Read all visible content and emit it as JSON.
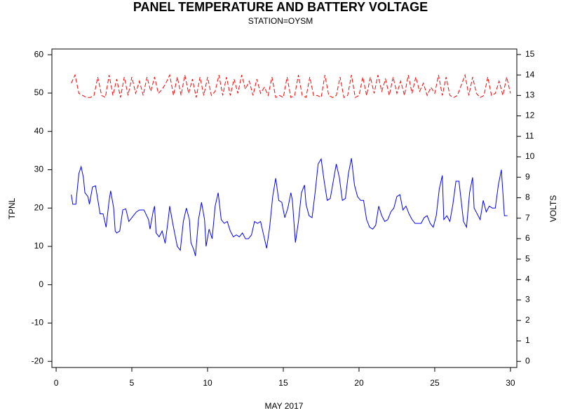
{
  "chart_data": {
    "type": "line",
    "title": "PANEL TEMPERATURE AND BATTERY VOLTAGE",
    "subtitle": "STATION=OYSM",
    "x_label": "MAY 2017",
    "y_label": "TPNL",
    "y2_label": "VOLTS",
    "xlim": [
      -0.28,
      30.42
    ],
    "xticks": [
      0,
      5,
      10,
      15,
      20,
      25,
      30
    ],
    "ylim": [
      -21.6,
      61.5
    ],
    "yticks": [
      -20,
      -10,
      0,
      10,
      20,
      30,
      40,
      50,
      60
    ],
    "y2lim": [
      -0.3,
      15.27
    ],
    "y2ticks": [
      0,
      1,
      2,
      3,
      4,
      5,
      6,
      7,
      8,
      9,
      10,
      11,
      12,
      13,
      14,
      15
    ],
    "series": [
      {
        "name": "TPNL",
        "color": "#0000ff",
        "dashed": false,
        "x": [
          1.0,
          1.1,
          1.3,
          1.5,
          1.65,
          1.8,
          1.9,
          2.1,
          2.2,
          2.4,
          2.6,
          2.8,
          2.9,
          3.1,
          3.3,
          3.5,
          3.6,
          3.8,
          3.9,
          4.0,
          4.2,
          4.4,
          4.6,
          4.8,
          5.0,
          5.3,
          5.5,
          5.8,
          6.1,
          6.2,
          6.4,
          6.5,
          6.6,
          6.8,
          7.0,
          7.2,
          7.4,
          7.5,
          7.7,
          7.9,
          8.0,
          8.2,
          8.4,
          8.6,
          8.8,
          8.9,
          9.1,
          9.2,
          9.4,
          9.6,
          9.8,
          9.9,
          10.1,
          10.3,
          10.5,
          10.7,
          10.9,
          11.1,
          11.3,
          11.5,
          11.7,
          11.9,
          12.1,
          12.3,
          12.5,
          12.7,
          12.9,
          13.1,
          13.3,
          13.5,
          13.7,
          13.9,
          14.1,
          14.3,
          14.5,
          14.7,
          14.9,
          15.1,
          15.3,
          15.5,
          15.6,
          15.8,
          16.0,
          16.2,
          16.4,
          16.5,
          16.7,
          16.9,
          17.1,
          17.3,
          17.5,
          17.7,
          17.9,
          18.1,
          18.3,
          18.5,
          18.7,
          18.9,
          19.1,
          19.3,
          19.5,
          19.7,
          19.9,
          20.1,
          20.3,
          20.5,
          20.7,
          20.9,
          21.1,
          21.3,
          21.5,
          21.7,
          21.9,
          22.1,
          22.3,
          22.5,
          22.7,
          22.9,
          23.1,
          23.3,
          23.5,
          23.7,
          23.9,
          24.1,
          24.3,
          24.5,
          24.7,
          24.9,
          25.1,
          25.3,
          25.5,
          25.6,
          25.8,
          26.0,
          26.2,
          26.4,
          26.6,
          26.8,
          26.9,
          27.1,
          27.3,
          27.5,
          27.6,
          27.8,
          28.0,
          28.2,
          28.4,
          28.6,
          28.8,
          29.0,
          29.2,
          29.4,
          29.6,
          29.8
        ],
        "values": [
          23.5,
          21,
          21,
          29,
          30.8,
          28,
          24,
          23,
          21,
          25.5,
          25.8,
          21,
          18.5,
          18.5,
          15,
          22,
          24.5,
          20,
          14,
          13.5,
          14,
          19.5,
          19.8,
          16.5,
          17.5,
          19,
          19.5,
          19.5,
          17,
          14.5,
          19,
          20.5,
          13.5,
          12.5,
          14,
          10.8,
          17,
          20.5,
          16,
          12,
          10,
          9,
          16.5,
          20,
          17,
          11,
          9,
          7.5,
          17,
          21.5,
          17,
          10,
          14.5,
          12,
          20.5,
          24,
          17,
          16,
          16.5,
          14,
          12.5,
          13,
          12.5,
          13.5,
          12,
          12,
          13,
          16.5,
          16,
          16.5,
          13,
          9.5,
          15,
          23,
          27.8,
          22,
          21.5,
          17.5,
          20,
          24,
          22,
          11,
          16.5,
          24,
          26,
          21,
          18,
          17.5,
          24,
          31.5,
          32.8,
          27,
          22,
          22.5,
          27,
          31.5,
          28,
          22,
          22.5,
          29,
          33,
          26,
          23,
          22,
          22,
          17,
          15,
          14.5,
          15.5,
          20.5,
          18,
          16.5,
          17,
          19,
          20,
          23,
          23.5,
          19.5,
          20.5,
          18.5,
          17,
          16,
          16,
          16,
          17.5,
          18,
          16,
          15,
          18,
          25,
          28.5,
          17,
          18,
          16.5,
          21,
          27,
          27,
          20,
          16.5,
          15,
          24,
          28,
          20,
          18.5,
          17,
          22,
          19,
          20.5,
          20,
          20,
          26,
          30,
          18,
          18
        ]
      },
      {
        "name": "VOLTS",
        "color": "#ff0000",
        "dashed": true,
        "axis": "y2",
        "x": [
          1.0,
          1.25,
          1.5,
          1.75,
          2.0,
          2.25,
          2.5,
          2.75,
          3.0,
          3.25,
          3.5,
          3.75,
          4.0,
          4.25,
          4.5,
          4.75,
          5.0,
          5.25,
          5.5,
          5.75,
          6.0,
          6.25,
          6.5,
          6.75,
          7.0,
          7.25,
          7.5,
          7.75,
          8.0,
          8.25,
          8.5,
          8.75,
          9.0,
          9.25,
          9.5,
          9.75,
          10.0,
          10.25,
          10.5,
          10.75,
          11.0,
          11.25,
          11.5,
          11.75,
          12.0,
          12.25,
          12.5,
          12.75,
          13.0,
          13.25,
          13.5,
          13.75,
          14.0,
          14.25,
          14.5,
          14.75,
          15.0,
          15.25,
          15.5,
          15.75,
          16.0,
          16.25,
          16.5,
          16.75,
          17.0,
          17.25,
          17.5,
          17.75,
          18.0,
          18.25,
          18.5,
          18.75,
          19.0,
          19.25,
          19.5,
          19.75,
          20.0,
          20.25,
          20.5,
          20.75,
          21.0,
          21.25,
          21.5,
          21.75,
          22.0,
          22.25,
          22.5,
          22.75,
          23.0,
          23.25,
          23.5,
          23.75,
          24.0,
          24.25,
          24.5,
          24.75,
          25.0,
          25.25,
          25.5,
          25.75,
          26.0,
          26.25,
          26.5,
          26.75,
          27.0,
          27.25,
          27.5,
          27.75,
          28.0,
          28.25,
          28.5,
          28.75,
          29.0,
          29.25,
          29.5,
          29.75,
          30.0
        ],
        "values": [
          13.6,
          14.0,
          13.1,
          13.0,
          12.9,
          12.9,
          13.0,
          13.9,
          13.0,
          12.9,
          14.0,
          13.0,
          13.8,
          12.9,
          13.9,
          13.0,
          13.9,
          13.1,
          13.7,
          13.0,
          13.9,
          13.2,
          13.9,
          13.1,
          13.3,
          13.6,
          14.0,
          13.0,
          13.9,
          13.0,
          14.0,
          13.1,
          13.8,
          12.9,
          13.9,
          13.0,
          13.9,
          13.0,
          13.2,
          14.0,
          13.0,
          13.9,
          13.0,
          13.8,
          13.1,
          14.0,
          13.3,
          13.7,
          13.0,
          13.8,
          13.1,
          13.4,
          13.0,
          13.9,
          12.9,
          13.0,
          12.9,
          13.9,
          12.9,
          13.0,
          14.0,
          13.0,
          12.9,
          13.9,
          13.0,
          13.0,
          12.9,
          14.0,
          13.0,
          12.9,
          13.0,
          13.9,
          12.9,
          13.0,
          14.0,
          12.9,
          13.0,
          13.9,
          13.0,
          13.9,
          13.1,
          14.0,
          13.2,
          13.8,
          13.0,
          13.9,
          13.1,
          13.7,
          13.0,
          14.0,
          13.1,
          13.9,
          13.2,
          13.6,
          13.0,
          13.4,
          13.1,
          14.0,
          13.0,
          13.9,
          13.0,
          12.9,
          13.0,
          13.5,
          14.0,
          13.0,
          13.9,
          13.1,
          12.9,
          13.0,
          13.9,
          13.0,
          13.1,
          13.7,
          13.0,
          13.9,
          13.1
        ]
      }
    ]
  }
}
